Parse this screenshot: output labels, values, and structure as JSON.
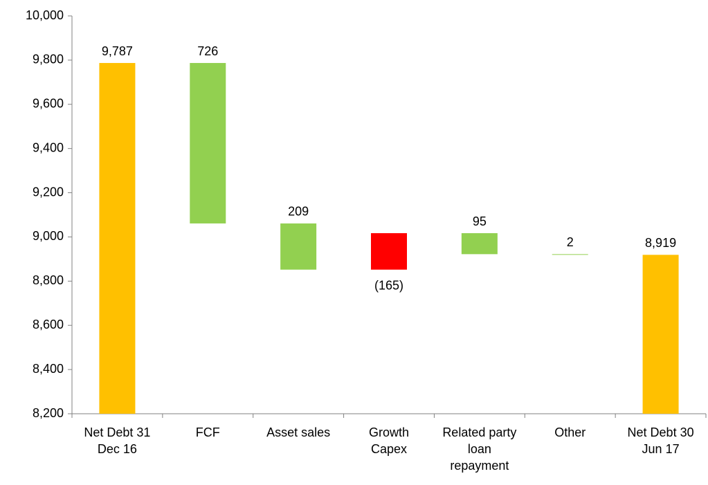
{
  "chart_data": {
    "type": "waterfall",
    "categories": [
      "Net Debt 31\nDec 16",
      "FCF",
      "Asset sales",
      "Growth\nCapex",
      "Related party\nloan\nrepayment",
      "Other",
      "Net Debt 30\nJun 17"
    ],
    "measure": [
      "total",
      "relative",
      "relative",
      "relative",
      "relative",
      "relative",
      "total"
    ],
    "values": [
      9787,
      726,
      209,
      -165,
      95,
      2,
      8919
    ],
    "value_labels": [
      "9,787",
      "726",
      "209",
      "(165)",
      "95",
      "2",
      "8,919"
    ],
    "colors": {
      "total": "#FFC000",
      "decrease": "#92D050",
      "increase": "#FF0000"
    },
    "ylim": [
      8200,
      10000
    ],
    "yticks": [
      {
        "value": 8200,
        "label": "8,200"
      },
      {
        "value": 8400,
        "label": "8,400"
      },
      {
        "value": 8600,
        "label": "8,600"
      },
      {
        "value": 8800,
        "label": "8,800"
      },
      {
        "value": 9000,
        "label": "9,000"
      },
      {
        "value": 9200,
        "label": "9,200"
      },
      {
        "value": 9400,
        "label": "9,400"
      },
      {
        "value": 9600,
        "label": "9,600"
      },
      {
        "value": 9800,
        "label": "9,800"
      },
      {
        "value": 10000,
        "label": "10,000"
      }
    ]
  }
}
